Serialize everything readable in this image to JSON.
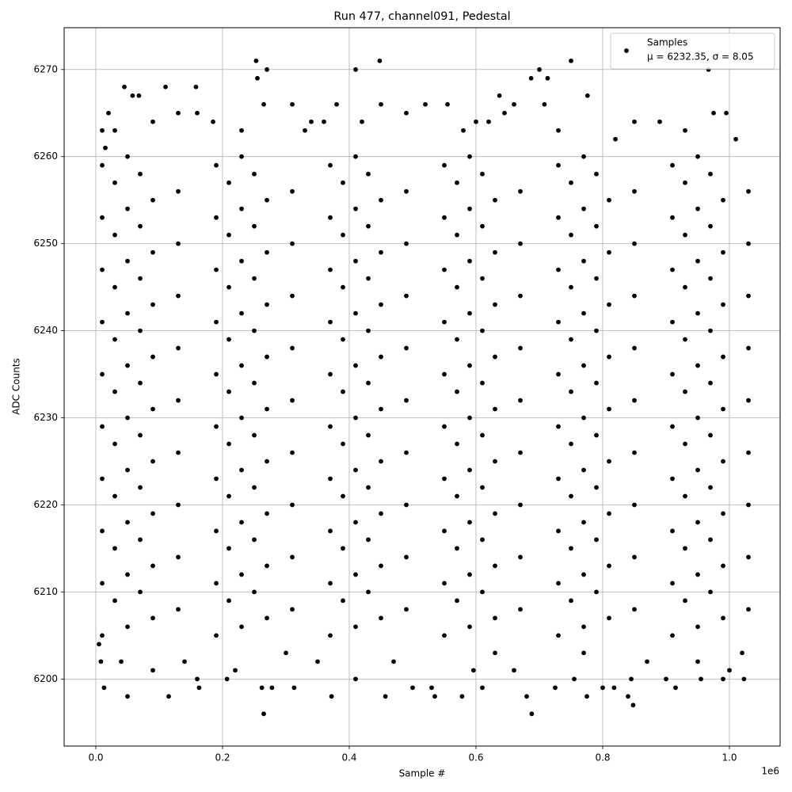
{
  "chart_data": {
    "type": "scatter",
    "title": "Run 477, channel091, Pedestal",
    "xlabel": "Sample #",
    "ylabel": "ADC Counts",
    "x_offset_label": "1e6",
    "xlim": [
      -0.05,
      1.08
    ],
    "ylim": [
      6192.3,
      6274.8
    ],
    "xticks": [
      {
        "value": 0,
        "label": "0.0"
      },
      {
        "value": 0.2,
        "label": "0.2"
      },
      {
        "value": 0.4,
        "label": "0.4"
      },
      {
        "value": 0.6,
        "label": "0.6"
      },
      {
        "value": 0.8,
        "label": "0.8"
      },
      {
        "value": 1,
        "label": "1.0"
      }
    ],
    "yticks": [
      6200,
      6210,
      6220,
      6230,
      6240,
      6250,
      6260,
      6270
    ],
    "grid": true,
    "legend": "upper right",
    "series": [
      {
        "name": "Samples",
        "label_detail": "μ = 6232.35, σ = 8.05",
        "color": "#000000",
        "x": [
          0.01,
          0.19,
          0.37,
          0.55,
          0.73,
          0.91,
          0.05,
          0.23,
          0.41,
          0.59,
          0.77,
          0.95,
          0.09,
          0.27,
          0.45,
          0.63,
          0.81,
          0.99,
          0.13,
          0.31,
          0.49,
          0.67,
          0.85,
          1.03,
          0.03,
          0.21,
          0.39,
          0.57,
          0.75,
          0.93,
          0.07,
          0.25,
          0.43,
          0.61,
          0.79,
          0.97,
          0.01,
          0.19,
          0.37,
          0.55,
          0.73,
          0.91,
          0.05,
          0.23,
          0.41,
          0.59,
          0.77,
          0.95,
          0.09,
          0.27,
          0.45,
          0.63,
          0.81,
          0.99,
          0.13,
          0.31,
          0.49,
          0.67,
          0.85,
          1.03,
          0.03,
          0.21,
          0.39,
          0.57,
          0.75,
          0.93,
          0.07,
          0.25,
          0.43,
          0.61,
          0.79,
          0.97,
          0.01,
          0.19,
          0.37,
          0.55,
          0.73,
          0.91,
          0.05,
          0.23,
          0.41,
          0.59,
          0.77,
          0.95,
          0.09,
          0.27,
          0.45,
          0.63,
          0.81,
          0.99,
          0.13,
          0.31,
          0.49,
          0.67,
          0.85,
          1.03,
          0.03,
          0.21,
          0.39,
          0.57,
          0.75,
          0.93,
          0.07,
          0.25,
          0.43,
          0.61,
          0.79,
          0.97,
          0.01,
          0.19,
          0.37,
          0.55,
          0.73,
          0.91,
          0.05,
          0.23,
          0.41,
          0.59,
          0.77,
          0.95,
          0.09,
          0.27,
          0.45,
          0.63,
          0.81,
          0.99,
          0.13,
          0.31,
          0.49,
          0.67,
          0.85,
          1.03,
          0.03,
          0.21,
          0.39,
          0.57,
          0.75,
          0.93,
          0.07,
          0.25,
          0.43,
          0.61,
          0.79,
          0.97,
          0.01,
          0.19,
          0.37,
          0.55,
          0.73,
          0.91,
          0.05,
          0.23,
          0.41,
          0.59,
          0.77,
          0.95,
          0.09,
          0.27,
          0.45,
          0.63,
          0.81,
          0.99,
          0.13,
          0.31,
          0.49,
          0.67,
          0.85,
          1.03,
          0.03,
          0.21,
          0.39,
          0.57,
          0.75,
          0.93,
          0.07,
          0.25,
          0.43,
          0.61,
          0.79,
          0.97,
          0.01,
          0.19,
          0.37,
          0.55,
          0.73,
          0.91,
          0.05,
          0.23,
          0.41,
          0.59,
          0.77,
          0.95,
          0.09,
          0.27,
          0.45,
          0.63,
          0.81,
          0.99,
          0.13,
          0.31,
          0.49,
          0.67,
          0.85,
          1.03,
          0.03,
          0.21,
          0.39,
          0.57,
          0.75,
          0.93,
          0.07,
          0.25,
          0.43,
          0.61,
          0.79,
          0.97,
          0.01,
          0.19,
          0.37,
          0.55,
          0.73,
          0.91,
          0.05,
          0.23,
          0.41,
          0.59,
          0.77,
          0.95,
          0.09,
          0.27,
          0.45,
          0.63,
          0.81,
          0.99,
          0.13,
          0.31,
          0.49,
          0.67,
          0.85,
          1.03,
          0.03,
          0.21,
          0.39,
          0.57,
          0.75,
          0.93,
          0.07,
          0.25,
          0.43,
          0.61,
          0.79,
          0.97,
          0.01,
          0.19,
          0.37,
          0.55,
          0.73,
          0.91,
          0.05,
          0.23,
          0.41,
          0.59,
          0.77,
          0.95,
          0.09,
          0.27,
          0.45,
          0.63,
          0.81,
          0.99,
          0.13,
          0.31,
          0.49,
          0.67,
          0.85,
          1.03,
          0.03,
          0.21,
          0.39,
          0.57,
          0.75,
          0.93,
          0.07,
          0.25,
          0.43,
          0.61,
          0.79,
          0.97,
          0.01,
          0.19,
          0.37,
          0.55,
          0.73,
          0.91,
          0.05,
          0.23,
          0.41,
          0.59,
          0.77,
          0.95,
          0.09,
          0.27,
          0.45,
          0.63,
          0.81,
          0.99,
          0.13,
          0.31,
          0.49,
          0.67,
          0.85,
          1.03,
          0.03,
          0.21,
          0.39,
          0.57,
          0.75,
          0.93,
          0.07,
          0.25,
          0.43,
          0.61,
          0.79,
          0.97,
          0.01,
          0.19,
          0.37,
          0.55,
          0.73,
          0.91,
          0.05,
          0.23,
          0.41,
          0.59,
          0.77,
          0.95,
          0.045,
          0.11,
          0.158,
          0.253,
          0.255,
          0.27,
          0.41,
          0.448,
          0.687,
          0.7,
          0.713,
          0.75,
          0.967,
          0.776,
          0.637,
          0.058,
          0.068,
          0.02,
          0.13,
          0.16,
          0.265,
          0.31,
          0.38,
          0.45,
          0.49,
          0.52,
          0.555,
          0.66,
          0.708,
          0.995,
          0.975,
          0.89,
          0.85,
          0.62,
          0.34,
          0.36,
          0.185,
          0.01,
          0.03,
          0.09,
          0.23,
          0.33,
          0.42,
          0.58,
          0.73,
          0.82,
          0.93,
          1.01,
          0.015,
          0.6,
          0.645,
          0.265,
          0.688,
          0.848,
          0.013,
          0.163,
          0.262,
          0.278,
          0.313,
          0.457,
          0.372,
          0.05,
          0.115,
          0.535,
          0.578,
          0.68,
          0.775,
          0.84,
          0.16,
          0.207,
          0.41,
          0.5,
          0.53,
          0.61,
          0.725,
          0.8,
          0.818,
          0.915,
          0.955,
          0.99,
          1.023,
          0.755,
          0.845,
          0.9,
          0.596,
          0.005,
          0.008,
          0.04,
          0.09,
          0.14,
          0.22,
          0.35,
          0.47,
          0.66,
          0.87,
          0.95,
          1.0,
          1.02,
          0.3,
          0.63,
          0.77
        ],
        "values": [
          6205,
          6205,
          6205,
          6205,
          6205,
          6205,
          6206,
          6206,
          6206,
          6206,
          6206,
          6206,
          6207,
          6207,
          6207,
          6207,
          6207,
          6207,
          6208,
          6208,
          6208,
          6208,
          6208,
          6208,
          6209,
          6209,
          6209,
          6209,
          6209,
          6209,
          6210,
          6210,
          6210,
          6210,
          6210,
          6210,
          6211,
          6211,
          6211,
          6211,
          6211,
          6211,
          6212,
          6212,
          6212,
          6212,
          6212,
          6212,
          6213,
          6213,
          6213,
          6213,
          6213,
          6213,
          6214,
          6214,
          6214,
          6214,
          6214,
          6214,
          6215,
          6215,
          6215,
          6215,
          6215,
          6215,
          6216,
          6216,
          6216,
          6216,
          6216,
          6216,
          6217,
          6217,
          6217,
          6217,
          6217,
          6217,
          6218,
          6218,
          6218,
          6218,
          6218,
          6218,
          6219,
          6219,
          6219,
          6219,
          6219,
          6219,
          6220,
          6220,
          6220,
          6220,
          6220,
          6220,
          6221,
          6221,
          6221,
          6221,
          6221,
          6221,
          6222,
          6222,
          6222,
          6222,
          6222,
          6222,
          6223,
          6223,
          6223,
          6223,
          6223,
          6223,
          6224,
          6224,
          6224,
          6224,
          6224,
          6224,
          6225,
          6225,
          6225,
          6225,
          6225,
          6225,
          6226,
          6226,
          6226,
          6226,
          6226,
          6226,
          6227,
          6227,
          6227,
          6227,
          6227,
          6227,
          6228,
          6228,
          6228,
          6228,
          6228,
          6228,
          6229,
          6229,
          6229,
          6229,
          6229,
          6229,
          6230,
          6230,
          6230,
          6230,
          6230,
          6230,
          6231,
          6231,
          6231,
          6231,
          6231,
          6231,
          6232,
          6232,
          6232,
          6232,
          6232,
          6232,
          6233,
          6233,
          6233,
          6233,
          6233,
          6233,
          6234,
          6234,
          6234,
          6234,
          6234,
          6234,
          6235,
          6235,
          6235,
          6235,
          6235,
          6235,
          6236,
          6236,
          6236,
          6236,
          6236,
          6236,
          6237,
          6237,
          6237,
          6237,
          6237,
          6237,
          6238,
          6238,
          6238,
          6238,
          6238,
          6238,
          6239,
          6239,
          6239,
          6239,
          6239,
          6239,
          6240,
          6240,
          6240,
          6240,
          6240,
          6240,
          6241,
          6241,
          6241,
          6241,
          6241,
          6241,
          6242,
          6242,
          6242,
          6242,
          6242,
          6242,
          6243,
          6243,
          6243,
          6243,
          6243,
          6243,
          6244,
          6244,
          6244,
          6244,
          6244,
          6244,
          6245,
          6245,
          6245,
          6245,
          6245,
          6245,
          6246,
          6246,
          6246,
          6246,
          6246,
          6246,
          6247,
          6247,
          6247,
          6247,
          6247,
          6247,
          6248,
          6248,
          6248,
          6248,
          6248,
          6248,
          6249,
          6249,
          6249,
          6249,
          6249,
          6249,
          6250,
          6250,
          6250,
          6250,
          6250,
          6250,
          6251,
          6251,
          6251,
          6251,
          6251,
          6251,
          6252,
          6252,
          6252,
          6252,
          6252,
          6252,
          6253,
          6253,
          6253,
          6253,
          6253,
          6253,
          6254,
          6254,
          6254,
          6254,
          6254,
          6254,
          6255,
          6255,
          6255,
          6255,
          6255,
          6255,
          6256,
          6256,
          6256,
          6256,
          6256,
          6256,
          6257,
          6257,
          6257,
          6257,
          6257,
          6257,
          6258,
          6258,
          6258,
          6258,
          6258,
          6258,
          6259,
          6259,
          6259,
          6259,
          6259,
          6259,
          6260,
          6260,
          6260,
          6260,
          6260,
          6260,
          6268,
          6268,
          6268,
          6271,
          6269,
          6270,
          6270,
          6271,
          6269,
          6270,
          6269,
          6271,
          6270,
          6267,
          6267,
          6267,
          6267,
          6265,
          6265,
          6265,
          6266,
          6266,
          6266,
          6266,
          6265,
          6266,
          6266,
          6266,
          6266,
          6265,
          6265,
          6264,
          6264,
          6264,
          6264,
          6264,
          6264,
          6263,
          6263,
          6264,
          6263,
          6263,
          6264,
          6263,
          6263,
          6262,
          6263,
          6262,
          6261,
          6264,
          6265,
          6196,
          6196,
          6197,
          6199,
          6199,
          6199,
          6199,
          6199,
          6198,
          6198,
          6198,
          6198,
          6198,
          6198,
          6198,
          6198,
          6198,
          6200,
          6200,
          6200,
          6199,
          6199,
          6199,
          6199,
          6199,
          6199,
          6199,
          6200,
          6200,
          6200,
          6200,
          6200,
          6200,
          6201,
          6204,
          6202,
          6202,
          6201,
          6202,
          6201,
          6202,
          6202,
          6201,
          6202,
          6202,
          6201,
          6203,
          6203,
          6203,
          6203
        ]
      }
    ]
  }
}
